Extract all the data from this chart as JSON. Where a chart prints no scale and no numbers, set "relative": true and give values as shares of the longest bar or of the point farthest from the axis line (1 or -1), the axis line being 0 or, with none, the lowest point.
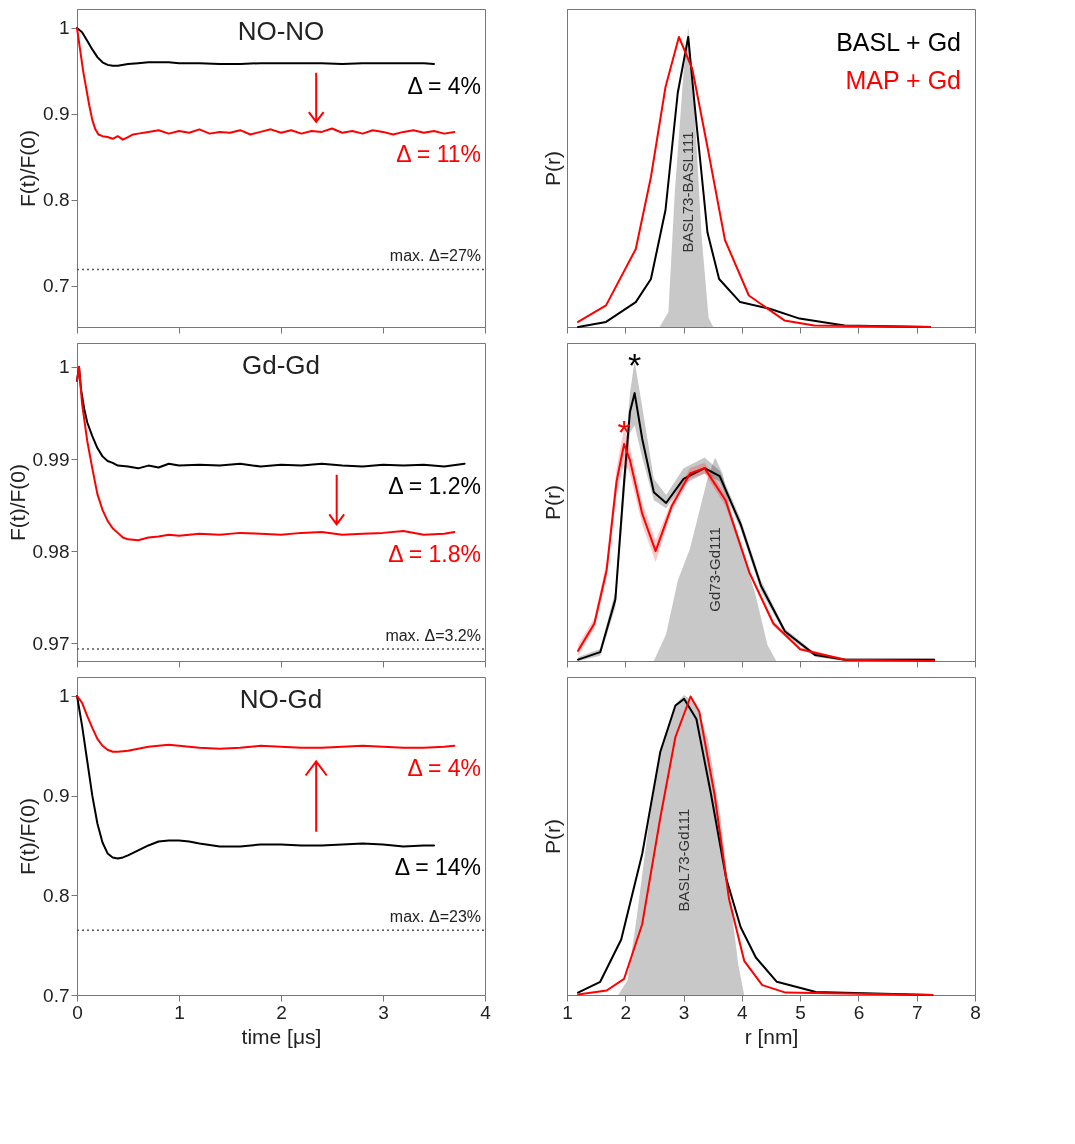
{
  "chart_data": [
    {
      "type": "line",
      "title": "NO-NO",
      "ylabel": "F(t)/F(0)",
      "xlim": [
        0,
        4
      ],
      "xticks": [
        0,
        1,
        2,
        3,
        4
      ],
      "ylim": [
        0.652,
        1.022
      ],
      "yticks": [
        0.7,
        0.8,
        0.9,
        1
      ],
      "tick_labels": "y",
      "series": [
        {
          "color": "#000000",
          "x": [
            0,
            0.05,
            0.1,
            0.15,
            0.2,
            0.25,
            0.3,
            0.35,
            0.4,
            0.5,
            0.6,
            0.7,
            0.8,
            0.9,
            1.0,
            1.2,
            1.4,
            1.6,
            1.8,
            2.0,
            2.2,
            2.4,
            2.6,
            2.8,
            3.0,
            3.2,
            3.4,
            3.5
          ],
          "values": [
            1.0,
            0.995,
            0.985,
            0.975,
            0.966,
            0.96,
            0.957,
            0.956,
            0.956,
            0.958,
            0.959,
            0.96,
            0.96,
            0.96,
            0.959,
            0.959,
            0.958,
            0.958,
            0.959,
            0.959,
            0.959,
            0.959,
            0.958,
            0.959,
            0.959,
            0.959,
            0.959,
            0.958
          ]
        },
        {
          "color": "#ff0000",
          "x": [
            0,
            0.03,
            0.06,
            0.09,
            0.12,
            0.15,
            0.18,
            0.21,
            0.25,
            0.3,
            0.35,
            0.4,
            0.45,
            0.5,
            0.55,
            0.6,
            0.7,
            0.8,
            0.9,
            1.0,
            1.1,
            1.2,
            1.3,
            1.4,
            1.5,
            1.6,
            1.7,
            1.8,
            1.9,
            2.0,
            2.1,
            2.2,
            2.3,
            2.4,
            2.5,
            2.6,
            2.7,
            2.8,
            2.9,
            3.0,
            3.1,
            3.2,
            3.3,
            3.4,
            3.5,
            3.6,
            3.7
          ],
          "values": [
            1.0,
            0.975,
            0.95,
            0.93,
            0.91,
            0.893,
            0.882,
            0.876,
            0.874,
            0.873,
            0.871,
            0.874,
            0.87,
            0.873,
            0.876,
            0.877,
            0.879,
            0.881,
            0.877,
            0.88,
            0.878,
            0.882,
            0.877,
            0.879,
            0.878,
            0.881,
            0.876,
            0.879,
            0.882,
            0.878,
            0.881,
            0.877,
            0.88,
            0.879,
            0.883,
            0.878,
            0.88,
            0.877,
            0.881,
            0.879,
            0.876,
            0.879,
            0.881,
            0.878,
            0.88,
            0.877,
            0.879
          ]
        }
      ],
      "ref_lines": [
        {
          "axis": "y",
          "value": 0.719,
          "color": "#555555",
          "line_style": "dotted"
        }
      ],
      "annotations": [
        "Δ = 4%",
        "Δ = 11%",
        "max. Δ=27%"
      ]
    },
    {
      "type": "line",
      "ylabel": "P(r)",
      "relative": true,
      "xlim": [
        1,
        8
      ],
      "xticks": [
        1,
        2,
        3,
        4,
        5,
        6,
        7,
        8
      ],
      "tick_labels": false,
      "legend": "top right",
      "series": [
        {
          "type": "area",
          "name": "BASL73-BASL111",
          "color": "#c8c8c8",
          "x": [
            2.59,
            2.74,
            2.85,
            3.0,
            3.08,
            3.18,
            3.31,
            3.43,
            3.51
          ],
          "values": [
            0,
            0.05,
            0.45,
            0.85,
            1.0,
            0.75,
            0.3,
            0.03,
            0
          ]
        },
        {
          "name": "BASL + Gd",
          "color": "#000000",
          "x": [
            1.19,
            1.67,
            2.18,
            2.44,
            2.69,
            2.9,
            3.08,
            3.2,
            3.41,
            3.61,
            3.97,
            4.48,
            4.99,
            5.76,
            7.23
          ],
          "values": [
            0,
            0.017,
            0.083,
            0.16,
            0.39,
            0.78,
            0.967,
            0.72,
            0.315,
            0.16,
            0.083,
            0.061,
            0.028,
            0.005,
            0
          ]
        },
        {
          "name": "MAP + Gd",
          "color": "#ff0000",
          "x": [
            1.19,
            1.67,
            2.18,
            2.44,
            2.69,
            2.92,
            3.15,
            3.41,
            3.71,
            4.12,
            4.73,
            5.24,
            7.23
          ],
          "values": [
            0.017,
            0.072,
            0.26,
            0.5,
            0.8,
            0.967,
            0.86,
            0.6,
            0.29,
            0.105,
            0.022,
            0.005,
            0
          ]
        }
      ]
    },
    {
      "type": "line",
      "title": "Gd-Gd",
      "ylabel": "F(t)/F(0)",
      "xlim": [
        0,
        4
      ],
      "xticks": [
        0,
        1,
        2,
        3,
        4
      ],
      "ylim": [
        0.9681,
        1.0026
      ],
      "yticks": [
        0.97,
        0.98,
        0.99,
        1
      ],
      "tick_labels": "y",
      "series": [
        {
          "color": "#000000",
          "x": [
            0,
            0.02,
            0.04,
            0.07,
            0.1,
            0.15,
            0.2,
            0.25,
            0.3,
            0.35,
            0.4,
            0.5,
            0.6,
            0.7,
            0.8,
            0.9,
            1.0,
            1.2,
            1.4,
            1.6,
            1.8,
            2.0,
            2.2,
            2.4,
            2.6,
            2.8,
            3.0,
            3.2,
            3.4,
            3.6,
            3.8
          ],
          "values": [
            0.9985,
            1.0,
            0.9975,
            0.9955,
            0.994,
            0.9925,
            0.9912,
            0.9903,
            0.9898,
            0.9896,
            0.9893,
            0.9892,
            0.989,
            0.9893,
            0.9891,
            0.9895,
            0.9893,
            0.9894,
            0.9893,
            0.9895,
            0.9892,
            0.9894,
            0.9893,
            0.9895,
            0.9893,
            0.9892,
            0.9894,
            0.9893,
            0.9894,
            0.9892,
            0.9895
          ]
        },
        {
          "color": "#ff0000",
          "x": [
            0,
            0.02,
            0.05,
            0.1,
            0.15,
            0.2,
            0.25,
            0.3,
            0.35,
            0.4,
            0.45,
            0.5,
            0.6,
            0.7,
            0.8,
            0.9,
            1.0,
            1.2,
            1.4,
            1.6,
            1.8,
            2.0,
            2.2,
            2.4,
            2.6,
            2.8,
            3.0,
            3.2,
            3.4,
            3.6,
            3.7
          ],
          "values": [
            0.9985,
            1.0,
            0.996,
            0.992,
            0.989,
            0.9862,
            0.9845,
            0.9833,
            0.9825,
            0.982,
            0.9815,
            0.9813,
            0.9812,
            0.9815,
            0.9816,
            0.9818,
            0.9817,
            0.9819,
            0.9818,
            0.982,
            0.9819,
            0.9818,
            0.982,
            0.9821,
            0.9818,
            0.9819,
            0.982,
            0.9822,
            0.9818,
            0.9819,
            0.9821
          ]
        }
      ],
      "ref_lines": [
        {
          "axis": "y",
          "value": 0.9694,
          "color": "#555555",
          "line_style": "dotted"
        }
      ],
      "annotations": [
        "Δ = 1.2%",
        "Δ = 1.8%",
        "max. Δ=3.2%"
      ]
    },
    {
      "type": "line",
      "ylabel": "P(r)",
      "relative": true,
      "xlim": [
        1,
        8
      ],
      "xticks": [
        1,
        2,
        3,
        4,
        5,
        6,
        7,
        8
      ],
      "tick_labels": false,
      "series": [
        {
          "type": "area",
          "name": "Gd73-Gd111",
          "color": "#c8c8c8",
          "x": [
            2.49,
            2.7,
            2.9,
            3.11,
            3.26,
            3.41,
            3.54,
            3.67,
            3.82,
            4.03,
            4.23,
            4.44,
            4.59
          ],
          "values": [
            0,
            0.1,
            0.3,
            0.42,
            0.55,
            0.68,
            0.76,
            0.7,
            0.55,
            0.4,
            0.25,
            0.06,
            0
          ]
        },
        {
          "color": "#000000",
          "x": [
            1.19,
            1.57,
            1.83,
            1.98,
            2.08,
            2.16,
            2.29,
            2.49,
            2.7,
            3.0,
            3.36,
            3.62,
            3.98,
            4.33,
            4.74,
            5.26,
            5.77,
            7.3
          ],
          "values": [
            0.005,
            0.033,
            0.23,
            0.67,
            0.93,
            1.0,
            0.83,
            0.63,
            0.59,
            0.68,
            0.72,
            0.69,
            0.51,
            0.28,
            0.11,
            0.022,
            0.005,
            0.005
          ],
          "lower": [
            0,
            0.02,
            0.2,
            0.6,
            0.85,
            0.88,
            0.76,
            0.6,
            0.57,
            0.66,
            0.7,
            0.67,
            0.49,
            0.26,
            0.1,
            0.015,
            0,
            0
          ],
          "upper": [
            0.015,
            0.045,
            0.26,
            0.72,
            1.0,
            1.12,
            0.95,
            0.68,
            0.62,
            0.72,
            0.76,
            0.71,
            0.53,
            0.3,
            0.12,
            0.03,
            0.01,
            0.01
          ]
        },
        {
          "color": "#ff0000",
          "x": [
            1.19,
            1.47,
            1.68,
            1.85,
            1.98,
            2.08,
            2.29,
            2.52,
            2.8,
            3.11,
            3.36,
            3.72,
            4.13,
            4.54,
            5.0,
            5.77,
            7.3
          ],
          "values": [
            0.038,
            0.14,
            0.34,
            0.67,
            0.81,
            0.75,
            0.55,
            0.41,
            0.58,
            0.7,
            0.72,
            0.6,
            0.33,
            0.14,
            0.044,
            0.005,
            0
          ],
          "lower": [
            0.02,
            0.12,
            0.31,
            0.62,
            0.74,
            0.7,
            0.51,
            0.37,
            0.56,
            0.68,
            0.7,
            0.58,
            0.32,
            0.13,
            0.04,
            0.003,
            0
          ],
          "upper": [
            0.06,
            0.16,
            0.37,
            0.72,
            0.87,
            0.8,
            0.59,
            0.45,
            0.6,
            0.72,
            0.74,
            0.62,
            0.34,
            0.15,
            0.05,
            0.008,
            0.002
          ]
        }
      ],
      "annotations": [
        {
          "text": "*",
          "x": 2.16,
          "y": 1.12
        },
        {
          "text": "*",
          "x": 1.98,
          "y": 0.87
        }
      ]
    },
    {
      "type": "line",
      "title": "NO-Gd",
      "xlabel": "time [μs]",
      "ylabel": "F(t)/F(0)",
      "xlim": [
        0,
        4
      ],
      "xticks": [
        0,
        1,
        2,
        3,
        4
      ],
      "ylim": [
        0.7,
        1.019
      ],
      "yticks": [
        0.7,
        0.8,
        0.9,
        1
      ],
      "series": [
        {
          "color": "#000000",
          "x": [
            0,
            0.05,
            0.1,
            0.15,
            0.2,
            0.25,
            0.3,
            0.35,
            0.4,
            0.45,
            0.5,
            0.6,
            0.7,
            0.8,
            0.9,
            1.0,
            1.1,
            1.2,
            1.4,
            1.6,
            1.8,
            2.0,
            2.2,
            2.4,
            2.6,
            2.8,
            3.0,
            3.2,
            3.4,
            3.5
          ],
          "values": [
            1.0,
            0.97,
            0.935,
            0.9,
            0.872,
            0.853,
            0.842,
            0.838,
            0.837,
            0.838,
            0.84,
            0.845,
            0.85,
            0.854,
            0.855,
            0.855,
            0.854,
            0.852,
            0.849,
            0.849,
            0.851,
            0.851,
            0.85,
            0.85,
            0.851,
            0.852,
            0.851,
            0.849,
            0.85,
            0.85
          ]
        },
        {
          "color": "#ff0000",
          "x": [
            0,
            0.05,
            0.1,
            0.15,
            0.2,
            0.25,
            0.3,
            0.35,
            0.4,
            0.5,
            0.6,
            0.7,
            0.8,
            0.9,
            1.0,
            1.2,
            1.4,
            1.6,
            1.8,
            2.0,
            2.2,
            2.4,
            2.6,
            2.8,
            3.0,
            3.2,
            3.4,
            3.6,
            3.7
          ],
          "values": [
            1.0,
            0.993,
            0.98,
            0.968,
            0.957,
            0.95,
            0.946,
            0.944,
            0.944,
            0.945,
            0.947,
            0.949,
            0.95,
            0.951,
            0.95,
            0.948,
            0.947,
            0.948,
            0.95,
            0.949,
            0.948,
            0.948,
            0.949,
            0.95,
            0.949,
            0.948,
            0.948,
            0.949,
            0.95
          ]
        }
      ],
      "ref_lines": [
        {
          "axis": "y",
          "value": 0.765,
          "color": "#555555",
          "line_style": "dotted"
        }
      ],
      "annotations": [
        "Δ = 14%",
        "Δ = 4%",
        "max. Δ=23%"
      ]
    },
    {
      "type": "line",
      "xlabel": "r [nm]",
      "ylabel": "P(r)",
      "relative": true,
      "xlim": [
        1,
        8
      ],
      "xticks": [
        1,
        2,
        3,
        4,
        5,
        6,
        7,
        8
      ],
      "tick_labels": "x",
      "series": [
        {
          "type": "area",
          "name": "BASL73-Gd111",
          "color": "#c8c8c8",
          "x": [
            1.88,
            2.04,
            2.19,
            2.39,
            2.6,
            2.86,
            3.01,
            3.22,
            3.42,
            3.63,
            3.78,
            3.94,
            4.04
          ],
          "values": [
            0,
            0.05,
            0.25,
            0.55,
            0.82,
            0.97,
            1.0,
            0.97,
            0.85,
            0.6,
            0.35,
            0.1,
            0
          ]
        },
        {
          "color": "#000000",
          "x": [
            1.19,
            1.57,
            1.93,
            2.29,
            2.6,
            2.86,
            3.01,
            3.22,
            3.47,
            3.73,
            3.98,
            4.24,
            4.6,
            5.27,
            7.27
          ],
          "values": [
            0.008,
            0.044,
            0.185,
            0.47,
            0.81,
            0.965,
            0.987,
            0.92,
            0.67,
            0.39,
            0.226,
            0.125,
            0.044,
            0.01,
            0
          ]
        },
        {
          "color": "#ff0000",
          "x": [
            1.19,
            1.68,
            1.98,
            2.29,
            2.6,
            2.86,
            3.12,
            3.27,
            3.53,
            3.78,
            4.04,
            4.35,
            4.75,
            7.27
          ],
          "values": [
            0.002,
            0.015,
            0.054,
            0.236,
            0.59,
            0.86,
            0.995,
            0.944,
            0.67,
            0.32,
            0.114,
            0.033,
            0.008,
            0
          ]
        }
      ]
    }
  ]
}
